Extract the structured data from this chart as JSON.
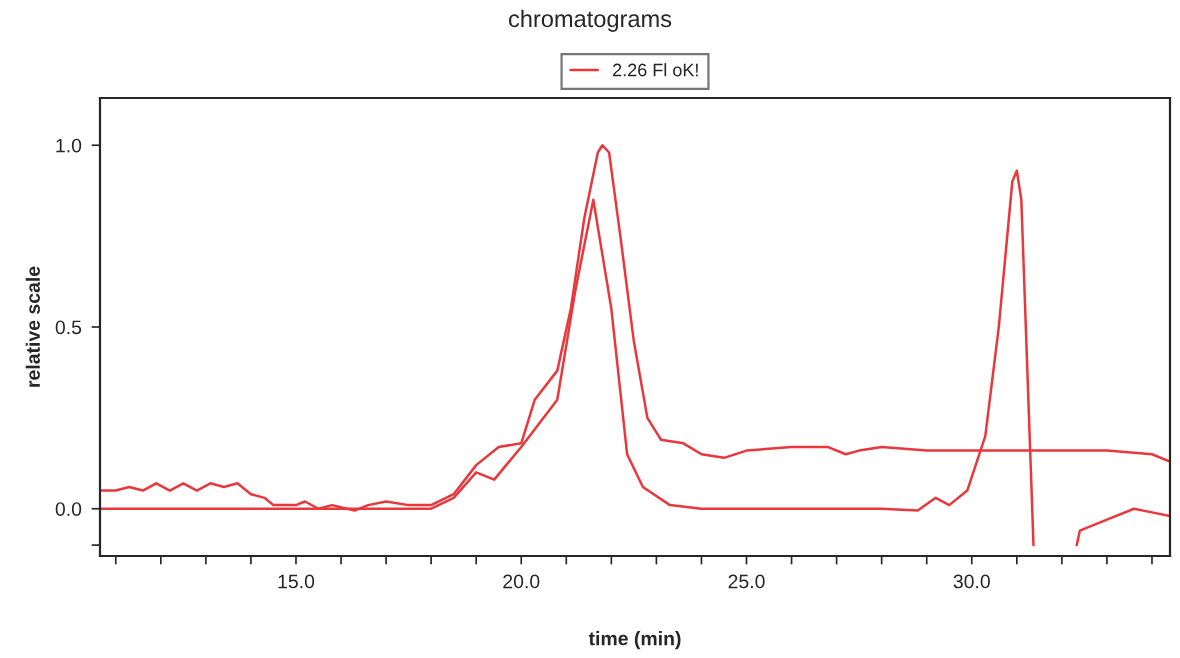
{
  "chart_data": {
    "type": "line",
    "title": "chromatograms",
    "xlabel": "time (min)",
    "ylabel": "relative scale",
    "xlim": [
      10.65,
      34.4
    ],
    "ylim": [
      -0.13,
      1.13
    ],
    "xticks": [
      {
        "value": 11,
        "label": null
      },
      {
        "value": 12,
        "label": null
      },
      {
        "value": 13,
        "label": null
      },
      {
        "value": 14,
        "label": null
      },
      {
        "value": 15,
        "label": "15.0"
      },
      {
        "value": 16,
        "label": null
      },
      {
        "value": 17,
        "label": null
      },
      {
        "value": 18,
        "label": null
      },
      {
        "value": 19,
        "label": null
      },
      {
        "value": 20,
        "label": "20.0"
      },
      {
        "value": 21,
        "label": null
      },
      {
        "value": 22,
        "label": null
      },
      {
        "value": 23,
        "label": null
      },
      {
        "value": 24,
        "label": null
      },
      {
        "value": 25,
        "label": "25.0"
      },
      {
        "value": 26,
        "label": null
      },
      {
        "value": 27,
        "label": null
      },
      {
        "value": 28,
        "label": null
      },
      {
        "value": 29,
        "label": null
      },
      {
        "value": 30,
        "label": "30.0"
      },
      {
        "value": 31,
        "label": null
      },
      {
        "value": 32,
        "label": null
      },
      {
        "value": 33,
        "label": null
      },
      {
        "value": 34,
        "label": null
      }
    ],
    "yticks": [
      {
        "value": -0.1,
        "label": null
      },
      {
        "value": 0,
        "label": "0.0"
      },
      {
        "value": 0.5,
        "label": "0.5"
      },
      {
        "value": 1,
        "label": "1.0"
      }
    ],
    "grid": false,
    "legend": "top",
    "marker": "none",
    "line_style": "solid",
    "series": [
      {
        "name": "2.26 Fl oK!",
        "color": "#e8383d",
        "x": [
          10.65,
          11,
          11.3,
          11.6,
          11.9,
          12.2,
          12.5,
          12.8,
          13.1,
          13.4,
          13.7,
          14.0,
          14.3,
          14.5,
          15.0,
          15.2,
          15.5,
          15.8,
          16.3,
          16.6,
          17.0,
          17.5,
          18.0,
          18.5,
          19.0,
          19.5,
          20.0,
          20.3,
          20.8,
          21.1,
          21.4,
          21.7,
          21.8,
          21.95,
          22.2,
          22.5,
          22.8,
          23.1,
          23.6,
          24.0,
          24.5,
          25.0,
          26.0,
          26.8,
          27.2,
          27.5,
          28.0,
          29.0,
          30.0,
          31.0,
          32.0,
          33.0,
          34.0,
          34.4
        ],
        "values": [
          0.05,
          0.05,
          0.06,
          0.05,
          0.07,
          0.05,
          0.07,
          0.05,
          0.07,
          0.06,
          0.07,
          0.04,
          0.03,
          0.01,
          0.01,
          0.02,
          0.0,
          0.01,
          -0.005,
          0.01,
          0.02,
          0.01,
          0.01,
          0.04,
          0.12,
          0.17,
          0.18,
          0.3,
          0.38,
          0.55,
          0.8,
          0.98,
          1.0,
          0.98,
          0.75,
          0.46,
          0.25,
          0.19,
          0.18,
          0.15,
          0.14,
          0.16,
          0.17,
          0.17,
          0.15,
          0.16,
          0.17,
          0.16,
          0.16,
          0.16,
          0.16,
          0.16,
          0.15,
          0.13
        ]
      },
      {
        "color": "#e8383d",
        "x": [
          10.65,
          14.0,
          18.0,
          18.5,
          19.0,
          19.4,
          20.0,
          20.8,
          21.2,
          21.6,
          22.0,
          22.35,
          22.7,
          23.3,
          24.0,
          28.0,
          28.8,
          29.2,
          29.5,
          29.9,
          30.3,
          30.6,
          30.9,
          31.0,
          31.1,
          31.37,
          31.8,
          32.33,
          32.4,
          33.0,
          33.6,
          34.0,
          34.4
        ],
        "values": [
          0.0,
          0.0,
          0.0,
          0.03,
          0.1,
          0.08,
          0.17,
          0.3,
          0.6,
          0.85,
          0.55,
          0.15,
          0.06,
          0.01,
          0.0,
          0.0,
          -0.005,
          0.03,
          0.01,
          0.05,
          0.2,
          0.5,
          0.9,
          0.93,
          0.85,
          -0.1,
          null,
          -0.1,
          -0.06,
          -0.03,
          0.0,
          -0.01,
          -0.02
        ]
      }
    ]
  }
}
